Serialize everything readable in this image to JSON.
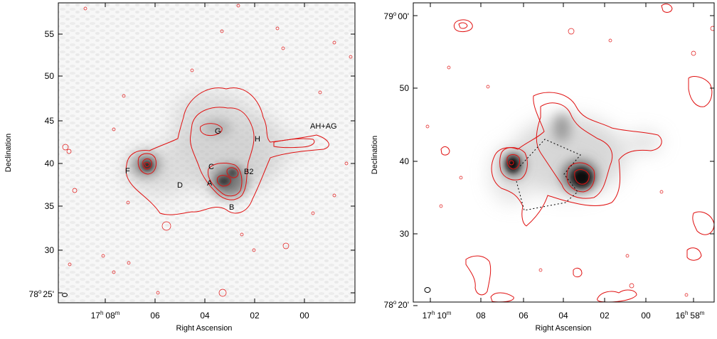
{
  "left_panel": {
    "x_axis_title": "Right Ascension",
    "y_axis_title": "Declination",
    "ra_ticks": [
      {
        "hours": "17",
        "hsup": "h",
        "mins": "08",
        "msup": "m"
      },
      {
        "text": "06"
      },
      {
        "text": "04"
      },
      {
        "text": "02"
      },
      {
        "text": "00"
      }
    ],
    "dec_ticks": [
      {
        "text": "55"
      },
      {
        "text": "50"
      },
      {
        "text": "45"
      },
      {
        "text": "40"
      },
      {
        "text": "35"
      },
      {
        "text": "30"
      }
    ],
    "dec_first": {
      "deg": "78",
      "sup": "o",
      "min": "25'"
    },
    "labels": {
      "f": "F",
      "d": "D",
      "c": "C",
      "a": "A",
      "b": "B",
      "b2": "B2",
      "g": "G",
      "h": "H",
      "ahag": "AH+AG"
    }
  },
  "right_panel": {
    "x_axis_title": "Right Ascension",
    "y_axis_title": "Declination",
    "ra_ticks": [
      {
        "hours": "17",
        "hsup": "h",
        "mins": "10",
        "msup": "m"
      },
      {
        "text": "08"
      },
      {
        "text": "06"
      },
      {
        "text": "04"
      },
      {
        "text": "02"
      },
      {
        "text": "00"
      },
      {
        "hours": "16",
        "hsup": "h",
        "mins": "58",
        "msup": "m"
      }
    ],
    "dec_top": {
      "deg": "79",
      "sup": "o",
      "min": "00'"
    },
    "dec_ticks": [
      {
        "text": "50"
      },
      {
        "text": "40"
      },
      {
        "text": "30"
      }
    ],
    "dec_bottom": {
      "deg": "78",
      "sup": "o",
      "min": "20'"
    }
  },
  "colors": {
    "contour": "#e01010",
    "gray": "#808080"
  }
}
